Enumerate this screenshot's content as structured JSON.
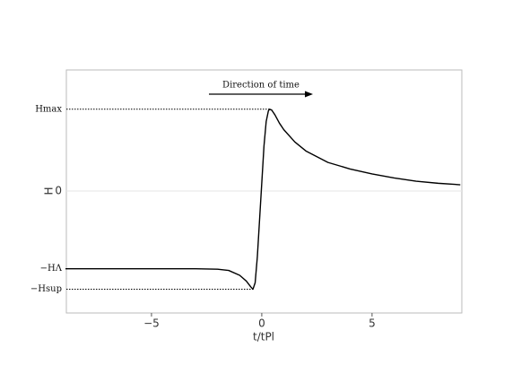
{
  "chart_data": {
    "type": "line",
    "annotation": "Direction of time",
    "xlabel": "t/tPl",
    "ylabel": "H",
    "x": [
      -8.9,
      -4,
      -3,
      -2,
      -1.5,
      -1,
      -0.7,
      -0.5,
      -0.4,
      -0.3,
      -0.2,
      -0.1,
      0,
      0.1,
      0.2,
      0.3,
      0.35,
      0.45,
      0.6,
      0.8,
      1,
      1.5,
      2,
      3,
      4,
      5,
      6,
      7,
      8,
      9
    ],
    "values": [
      -0.95,
      -0.95,
      -0.95,
      -0.955,
      -0.97,
      -1.03,
      -1.1,
      -1.17,
      -1.2,
      -1.12,
      -0.8,
      -0.35,
      0.1,
      0.55,
      0.85,
      0.98,
      1.0,
      0.99,
      0.93,
      0.83,
      0.75,
      0.6,
      0.49,
      0.35,
      0.27,
      0.21,
      0.16,
      0.12,
      0.095,
      0.077
    ],
    "color": "#000000",
    "xlim": [
      -8.86,
      9.07
    ],
    "ylim": [
      -1.49,
      1.48
    ],
    "xticks": [
      {
        "value": -5,
        "label": "−5"
      },
      0,
      5
    ],
    "yticks": [
      {
        "value": 1,
        "label": "Hmax"
      },
      0,
      {
        "value": -0.95,
        "label": "−HΛ"
      },
      {
        "value": -1.2,
        "label": "−Hsup"
      }
    ]
  }
}
